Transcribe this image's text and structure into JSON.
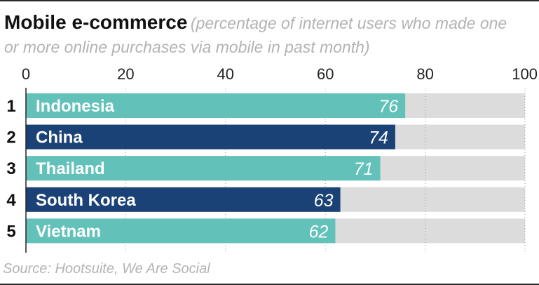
{
  "header": {
    "title": "Mobile e-commerce",
    "subtitle": "(percentage of internet users who made one or more online purchases via mobile in past month)"
  },
  "chart_data": {
    "type": "bar",
    "orientation": "horizontal",
    "title": "Mobile e-commerce",
    "subtitle": "(percentage of internet users who made one or more online purchases via mobile in past month)",
    "xlim": [
      0,
      100
    ],
    "xticks": [
      0,
      20,
      40,
      60,
      80,
      100
    ],
    "ranks": [
      "1",
      "2",
      "3",
      "4",
      "5"
    ],
    "categories": [
      "Indonesia",
      "China",
      "Thailand",
      "South Korea",
      "Vietnam"
    ],
    "values": [
      76,
      74,
      71,
      63,
      62
    ],
    "value_labels": [
      "76",
      "74",
      "71",
      "63",
      "62"
    ],
    "bar_colors": [
      "#62c1b9",
      "#1b4276",
      "#62c1b9",
      "#1b4276",
      "#62c1b9"
    ],
    "track_color": "#dcdcdc",
    "grid": true
  },
  "footer": {
    "source": "Source: Hootsuite, We Are Social"
  }
}
